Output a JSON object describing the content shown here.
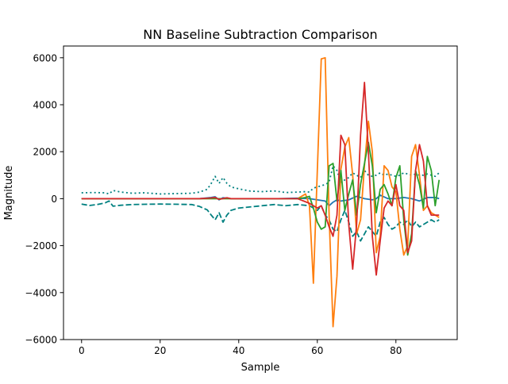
{
  "chart_data": {
    "type": "line",
    "title": "NN Baseline Subtraction Comparison",
    "xlabel": "Sample",
    "ylabel": "Magnitude",
    "xlim": [
      -4.6,
      95.6
    ],
    "ylim": [
      -6000,
      6500
    ],
    "xticks": [
      0,
      20,
      40,
      60,
      80
    ],
    "yticks": [
      -6000,
      -4000,
      -2000,
      0,
      2000,
      4000,
      6000
    ],
    "grid": false,
    "legend": "none",
    "series": [
      {
        "color": "#008080",
        "linestyle": "dotted",
        "x": [
          0,
          3,
          6,
          7,
          8,
          10,
          13,
          16,
          20,
          25,
          28,
          30,
          32,
          33,
          34,
          35,
          36,
          37,
          38,
          40,
          43,
          46,
          49,
          52,
          55,
          57,
          58,
          59,
          60,
          61,
          62,
          63,
          64,
          65,
          66,
          67,
          68,
          69,
          70,
          71,
          72,
          73,
          74,
          75,
          76,
          77,
          78,
          79,
          80,
          81,
          82,
          83,
          84,
          85,
          86,
          87,
          88,
          89,
          90,
          91
        ],
        "y": [
          250,
          260,
          250,
          200,
          350,
          280,
          230,
          250,
          200,
          220,
          230,
          280,
          400,
          650,
          950,
          650,
          900,
          650,
          500,
          420,
          320,
          300,
          330,
          260,
          280,
          300,
          280,
          450,
          500,
          550,
          600,
          700,
          1400,
          1200,
          700,
          800,
          900,
          1100,
          1000,
          900,
          1200,
          1000,
          950,
          1000,
          1100,
          1000,
          1050,
          1000,
          950,
          1000,
          1100,
          1050,
          1000,
          1050,
          1000,
          1000,
          1050,
          1000,
          950,
          1100
        ]
      },
      {
        "color": "#008080",
        "linestyle": "dashed",
        "x": [
          0,
          2,
          4,
          6,
          7,
          8,
          10,
          13,
          16,
          20,
          25,
          28,
          30,
          32,
          33,
          34,
          35,
          36,
          37,
          38,
          40,
          43,
          46,
          49,
          52,
          55,
          58,
          60,
          61,
          62,
          63,
          64,
          65,
          66,
          67,
          68,
          69,
          70,
          71,
          72,
          73,
          74,
          75,
          76,
          77,
          78,
          79,
          80,
          81,
          82,
          83,
          84,
          85,
          86,
          87,
          88,
          89,
          90,
          91
        ],
        "y": [
          -230,
          -290,
          -250,
          -180,
          -100,
          -320,
          -280,
          -250,
          -240,
          -230,
          -240,
          -250,
          -330,
          -480,
          -700,
          -900,
          -600,
          -1000,
          -700,
          -500,
          -400,
          -350,
          -300,
          -250,
          -300,
          -250,
          -300,
          -500,
          -300,
          -700,
          -900,
          -1300,
          -1400,
          -900,
          -500,
          -1000,
          -1600,
          -1400,
          -1800,
          -1500,
          -1200,
          -1400,
          -1600,
          -1000,
          -800,
          -1100,
          -1300,
          -1200,
          -1000,
          -1100,
          -900,
          -1200,
          -1000,
          -1200,
          -1100,
          -1000,
          -900,
          -1000,
          -900
        ]
      },
      {
        "color": "#1f77b4",
        "linestyle": "solid",
        "x": [
          0,
          10,
          20,
          30,
          33,
          34,
          35,
          36,
          38,
          40,
          50,
          55,
          58,
          60,
          62,
          63,
          64,
          65,
          66,
          68,
          70,
          72,
          74,
          75,
          76,
          78,
          80,
          82,
          84,
          86,
          88,
          90,
          91
        ],
        "y": [
          0,
          0,
          0,
          0,
          50,
          80,
          -50,
          40,
          0,
          0,
          0,
          20,
          0,
          -50,
          -100,
          -300,
          -150,
          -50,
          -100,
          -50,
          100,
          0,
          -50,
          0,
          150,
          0,
          0,
          50,
          0,
          -100,
          50,
          50,
          0
        ]
      },
      {
        "color": "#ff7f0e",
        "linestyle": "solid",
        "x": [
          0,
          10,
          20,
          30,
          40,
          50,
          55,
          56,
          57,
          58,
          59,
          60,
          61,
          62,
          63,
          64,
          65,
          66,
          67,
          68,
          69,
          70,
          71,
          72,
          73,
          74,
          75,
          76,
          77,
          78,
          79,
          80,
          81,
          82,
          83,
          84,
          85,
          86,
          87,
          88,
          89,
          90,
          91
        ],
        "y": [
          0,
          0,
          0,
          0,
          0,
          0,
          0,
          100,
          200,
          -300,
          -3600,
          1200,
          5950,
          6000,
          -700,
          -5450,
          -3300,
          1250,
          2200,
          2600,
          1000,
          -1500,
          -900,
          1400,
          3300,
          2000,
          -2300,
          -1600,
          1400,
          1200,
          500,
          300,
          -1300,
          -2400,
          -2000,
          1800,
          2300,
          1000,
          -500,
          -300,
          -600,
          -700,
          -800
        ]
      },
      {
        "color": "#2ca02c",
        "linestyle": "solid",
        "x": [
          0,
          10,
          20,
          30,
          40,
          50,
          55,
          57,
          58,
          59,
          60,
          61,
          62,
          63,
          64,
          65,
          66,
          67,
          68,
          69,
          70,
          71,
          72,
          73,
          74,
          75,
          76,
          77,
          78,
          79,
          80,
          81,
          82,
          83,
          84,
          85,
          86,
          87,
          88,
          89,
          90,
          91
        ],
        "y": [
          0,
          0,
          0,
          0,
          0,
          0,
          0,
          50,
          100,
          -400,
          -1000,
          -1300,
          -1200,
          1400,
          1500,
          -100,
          1200,
          -500,
          200,
          800,
          -700,
          600,
          1500,
          2400,
          1400,
          -600,
          400,
          600,
          200,
          -300,
          900,
          1400,
          -900,
          -2400,
          -1500,
          1200,
          600,
          -400,
          1800,
          1200,
          -300,
          800
        ]
      },
      {
        "color": "#d62728",
        "linestyle": "solid",
        "x": [
          0,
          10,
          20,
          30,
          33,
          34,
          35,
          37,
          38,
          40,
          50,
          55,
          58,
          59,
          60,
          61,
          62,
          63,
          64,
          65,
          66,
          67,
          68,
          69,
          70,
          71,
          72,
          73,
          74,
          75,
          76,
          77,
          78,
          79,
          80,
          81,
          82,
          83,
          84,
          85,
          86,
          87,
          88,
          89,
          90,
          91
        ],
        "y": [
          0,
          0,
          0,
          0,
          30,
          50,
          -30,
          40,
          0,
          0,
          0,
          0,
          -200,
          -300,
          -400,
          -300,
          -700,
          -1200,
          -1600,
          -700,
          2700,
          2300,
          -1100,
          -3000,
          -1100,
          2700,
          4950,
          2000,
          -1600,
          -3250,
          -1800,
          -400,
          -100,
          -300,
          600,
          -300,
          -500,
          -2300,
          -1800,
          1200,
          2300,
          1600,
          -300,
          -700,
          -700,
          -700
        ]
      }
    ]
  }
}
